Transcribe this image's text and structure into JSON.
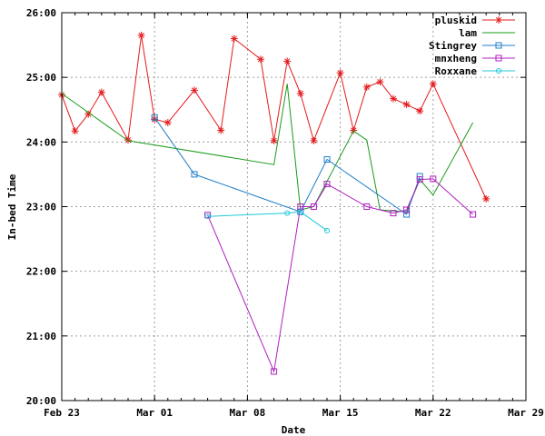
{
  "chart_data": {
    "type": "line",
    "title": "",
    "xlabel": "Date",
    "ylabel": "In-bed Time",
    "grid": true,
    "legend_position": "top-right",
    "x_axis": {
      "kind": "date",
      "range": [
        "2012-02-23",
        "2012-03-29"
      ],
      "ticks": [
        {
          "value": "2012-02-23",
          "label": "Feb 23"
        },
        {
          "value": "2012-03-01",
          "label": "Mar 01"
        },
        {
          "value": "2012-03-08",
          "label": "Mar 08"
        },
        {
          "value": "2012-03-15",
          "label": "Mar 15"
        },
        {
          "value": "2012-03-22",
          "label": "Mar 22"
        },
        {
          "value": "2012-03-29",
          "label": "Mar 29"
        }
      ]
    },
    "y_axis": {
      "kind": "time",
      "range": [
        20,
        26
      ],
      "ticks": [
        {
          "value": 20,
          "label": "20:00"
        },
        {
          "value": 21,
          "label": "21:00"
        },
        {
          "value": 22,
          "label": "22:00"
        },
        {
          "value": 23,
          "label": "23:00"
        },
        {
          "value": 24,
          "label": "24:00"
        },
        {
          "value": 25,
          "label": "25:00"
        },
        {
          "value": 26,
          "label": "26:00"
        }
      ]
    },
    "series": [
      {
        "name": "pluskid",
        "color": "#e41a1c",
        "marker": "asterisk",
        "points": [
          [
            "2012-02-23",
            24.73
          ],
          [
            "2012-02-24",
            24.17
          ],
          [
            "2012-02-25",
            24.43
          ],
          [
            "2012-02-26",
            24.77
          ],
          [
            "2012-02-28",
            24.03
          ],
          [
            "2012-02-29",
            25.65
          ],
          [
            "2012-03-01",
            24.35
          ],
          [
            "2012-03-02",
            24.3
          ],
          [
            "2012-03-04",
            24.8
          ],
          [
            "2012-03-06",
            24.18
          ],
          [
            "2012-03-07",
            25.6
          ],
          [
            "2012-03-09",
            25.28
          ],
          [
            "2012-03-10",
            24.02
          ],
          [
            "2012-03-11",
            25.25
          ],
          [
            "2012-03-12",
            24.75
          ],
          [
            "2012-03-13",
            24.02
          ],
          [
            "2012-03-15",
            25.07
          ],
          [
            "2012-03-16",
            24.18
          ],
          [
            "2012-03-17",
            24.85
          ],
          [
            "2012-03-18",
            24.93
          ],
          [
            "2012-03-19",
            24.67
          ],
          [
            "2012-03-20",
            24.58
          ],
          [
            "2012-03-21",
            24.48
          ],
          [
            "2012-03-22",
            24.9
          ],
          [
            "2012-03-26",
            23.12
          ]
        ]
      },
      {
        "name": "lam",
        "color": "#1a9c1a",
        "marker": "none",
        "points": [
          [
            "2012-02-23",
            24.75
          ],
          [
            "2012-02-28",
            24.02
          ],
          [
            "2012-03-10",
            23.65
          ],
          [
            "2012-03-11",
            24.9
          ],
          [
            "2012-03-12",
            22.95
          ],
          [
            "2012-03-13",
            23.0
          ],
          [
            "2012-03-16",
            24.17
          ],
          [
            "2012-03-17",
            24.03
          ],
          [
            "2012-03-18",
            22.95
          ],
          [
            "2012-03-20",
            22.92
          ],
          [
            "2012-03-21",
            23.42
          ],
          [
            "2012-03-22",
            23.18
          ],
          [
            "2012-03-25",
            24.3
          ]
        ]
      },
      {
        "name": "Stingrey",
        "color": "#1f7fc8",
        "marker": "square",
        "points": [
          [
            "2012-03-01",
            24.38
          ],
          [
            "2012-03-04",
            23.5
          ],
          [
            "2012-03-12",
            22.92
          ],
          [
            "2012-03-14",
            23.73
          ],
          [
            "2012-03-20",
            22.88
          ],
          [
            "2012-03-21",
            23.47
          ]
        ]
      },
      {
        "name": "mnxheng",
        "color": "#b020c0",
        "marker": "square",
        "points": [
          [
            "2012-03-05",
            22.87
          ],
          [
            "2012-03-10",
            20.45
          ],
          [
            "2012-03-12",
            23.0
          ],
          [
            "2012-03-13",
            23.0
          ],
          [
            "2012-03-14",
            23.35
          ],
          [
            "2012-03-17",
            23.0
          ],
          [
            "2012-03-19",
            22.9
          ],
          [
            "2012-03-20",
            22.95
          ],
          [
            "2012-03-21",
            23.42
          ],
          [
            "2012-03-22",
            23.43
          ],
          [
            "2012-03-25",
            22.88
          ]
        ]
      },
      {
        "name": "Roxxane",
        "color": "#20c8d8",
        "marker": "circle",
        "points": [
          [
            "2012-03-05",
            22.85
          ],
          [
            "2012-03-11",
            22.9
          ],
          [
            "2012-03-12",
            22.92
          ],
          [
            "2012-03-14",
            22.63
          ]
        ]
      }
    ]
  }
}
